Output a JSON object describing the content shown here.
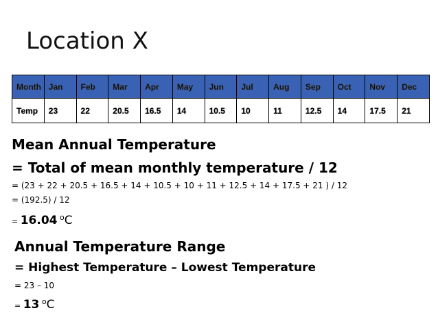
{
  "title": "Location X",
  "table": {
    "header": [
      "Month",
      "Jan",
      "Feb",
      "Mar",
      "Apr",
      "May",
      "Jun",
      "Jul",
      "Aug",
      "Sep",
      "Oct",
      "Nov",
      "Dec"
    ],
    "row": [
      "Temp",
      "23",
      "22",
      "20.5",
      "16.5",
      "14",
      "10.5",
      "10",
      "11",
      "12.5",
      "14",
      "17.5",
      "21"
    ],
    "header_color": "#3a62b4"
  },
  "mean": {
    "heading": "Mean Annual Temperature",
    "formula": "= Total of mean monthly temperature / 12",
    "step1": "= (23 + 22 + 20.5 + 16.5 + 14 + 10.5 + 10 + 11 + 12.5 + 14 + 17.5 + 21 ) / 12",
    "step2": "= (192.5) / 12",
    "eq": "=",
    "result": "16.04",
    "deg": "o",
    "unit": "C"
  },
  "range": {
    "heading": "Annual Temperature Range",
    "formula": "= Highest Temperature – Lowest Temperature",
    "step1": "= 23 – 10",
    "eq": "=",
    "result": "13",
    "deg": "o",
    "unit": "C"
  }
}
